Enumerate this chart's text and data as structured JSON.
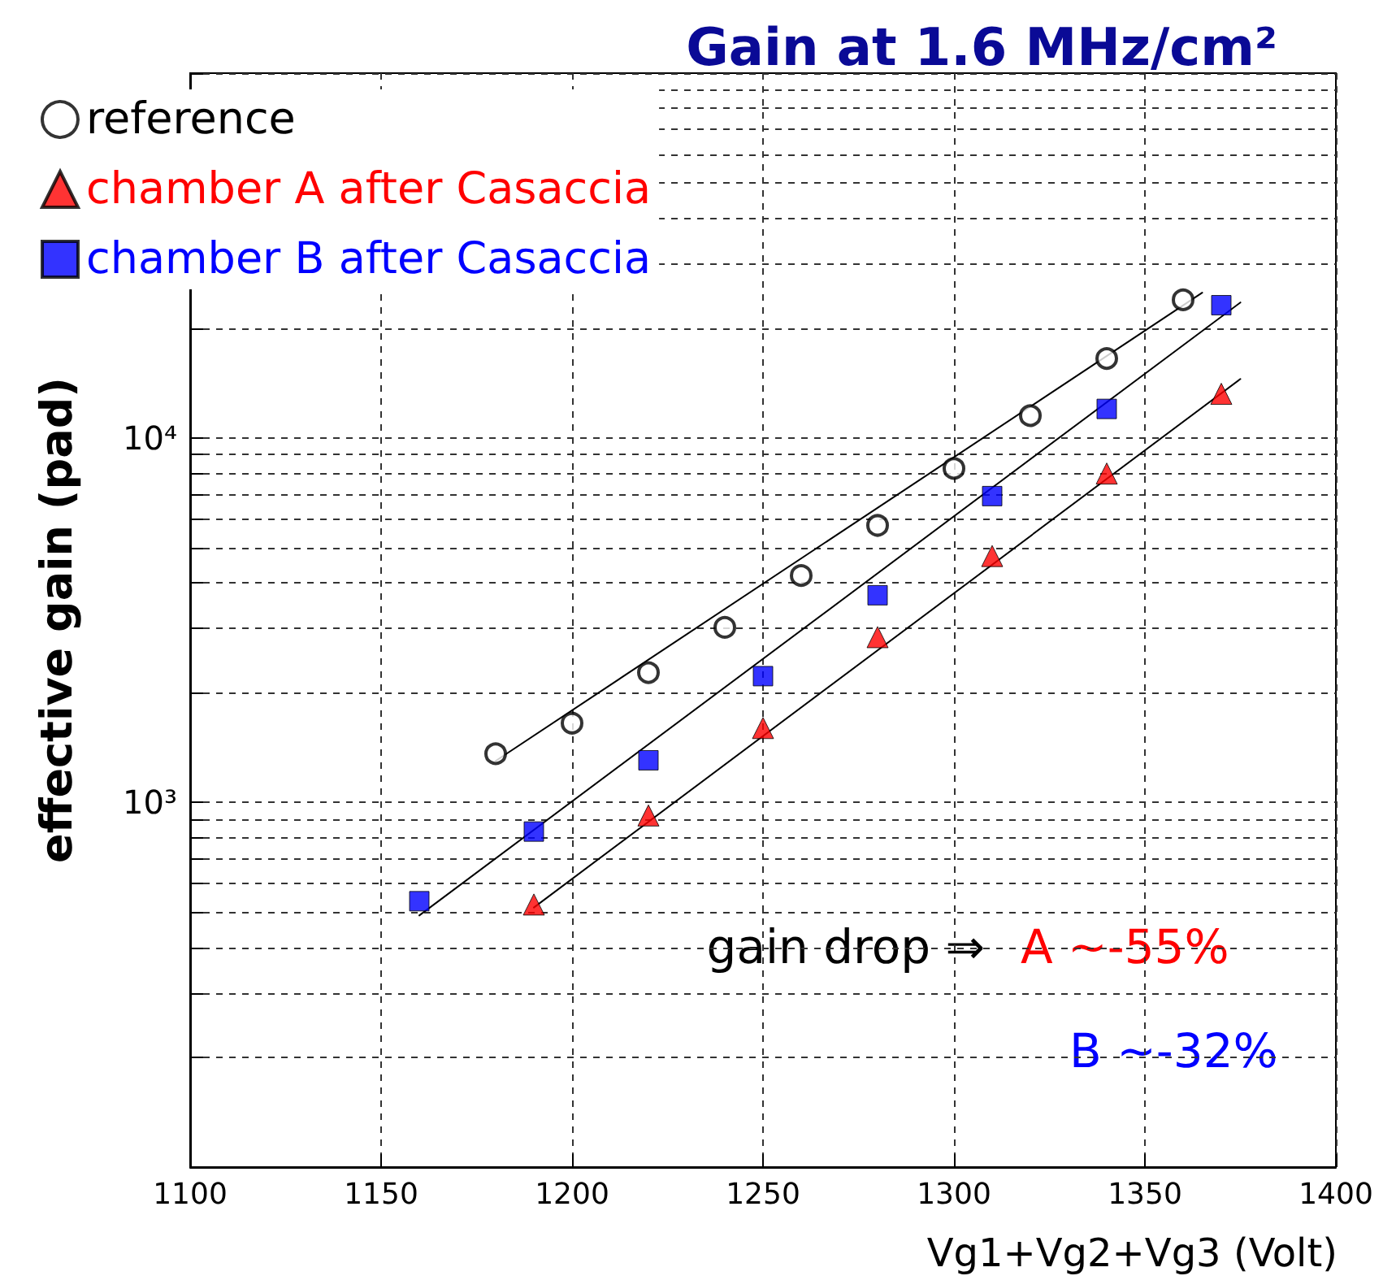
{
  "chart_data": {
    "type": "scatter",
    "title": "Gain at 1.6 MHz/cm²",
    "xlabel": "Vg1+Vg2+Vg3 (Volt)",
    "ylabel": "effective gain (pad)",
    "xlim": [
      1100,
      1400
    ],
    "xticks": [
      1100,
      1150,
      1200,
      1250,
      1300,
      1350,
      1400
    ],
    "ylim": [
      100,
      100000
    ],
    "log": "y",
    "yticks": [
      {
        "value": 100,
        "label": null
      },
      {
        "value": 200,
        "label": null
      },
      {
        "value": 300,
        "label": null
      },
      {
        "value": 400,
        "label": null
      },
      {
        "value": 500,
        "label": null
      },
      {
        "value": 600,
        "label": null
      },
      {
        "value": 700,
        "label": null
      },
      {
        "value": 800,
        "label": null
      },
      {
        "value": 900,
        "label": null
      },
      {
        "value": 1000,
        "label": "10³"
      },
      {
        "value": 2000,
        "label": null
      },
      {
        "value": 3000,
        "label": null
      },
      {
        "value": 4000,
        "label": null
      },
      {
        "value": 5000,
        "label": null
      },
      {
        "value": 6000,
        "label": null
      },
      {
        "value": 7000,
        "label": null
      },
      {
        "value": 8000,
        "label": null
      },
      {
        "value": 9000,
        "label": null
      },
      {
        "value": 10000,
        "label": "10⁴"
      },
      {
        "value": 20000,
        "label": null
      },
      {
        "value": 30000,
        "label": null
      },
      {
        "value": 40000,
        "label": null
      },
      {
        "value": 50000,
        "label": null
      },
      {
        "value": 60000,
        "label": null
      },
      {
        "value": 70000,
        "label": null
      },
      {
        "value": 80000,
        "label": null
      },
      {
        "value": 90000,
        "label": null
      },
      {
        "value": 100000,
        "label": null
      }
    ],
    "grid": true,
    "legend": "top left",
    "series": [
      {
        "name": "reference",
        "color": "#000000",
        "marker": "circle",
        "x": [
          1180,
          1200,
          1220,
          1240,
          1260,
          1280,
          1300,
          1320,
          1340,
          1360
        ],
        "values": [
          1360,
          1650,
          2270,
          3020,
          4190,
          5750,
          8240,
          11500,
          16500,
          23900
        ]
      },
      {
        "name": "chamber A after Casaccia",
        "color": "#ff0000",
        "marker": "triangle",
        "x": [
          1190,
          1220,
          1250,
          1280,
          1310,
          1340,
          1370
        ],
        "values": [
          525,
          921,
          1600,
          2840,
          4740,
          7980,
          13200
        ]
      },
      {
        "name": "chamber B after Casaccia",
        "color": "#0000ff",
        "marker": "square",
        "x": [
          1160,
          1190,
          1220,
          1250,
          1280,
          1310,
          1340,
          1370
        ],
        "values": [
          536,
          832,
          1305,
          2220,
          3700,
          6920,
          12000,
          23100
        ]
      },
      {
        "type": "line",
        "color": "#000000",
        "marker": "none",
        "x": [
          1180,
          1365
        ],
        "values": [
          1300,
          25000
        ]
      },
      {
        "type": "line",
        "color": "#000000",
        "marker": "none",
        "x": [
          1160,
          1375
        ],
        "values": [
          490,
          23500
        ]
      },
      {
        "type": "line",
        "color": "#000000",
        "marker": "none",
        "x": [
          1190,
          1375
        ],
        "values": [
          515,
          14500
        ]
      }
    ],
    "annotations": [
      "gain drop ⇒",
      "A ∼-55%",
      "B ∼-32%"
    ]
  }
}
